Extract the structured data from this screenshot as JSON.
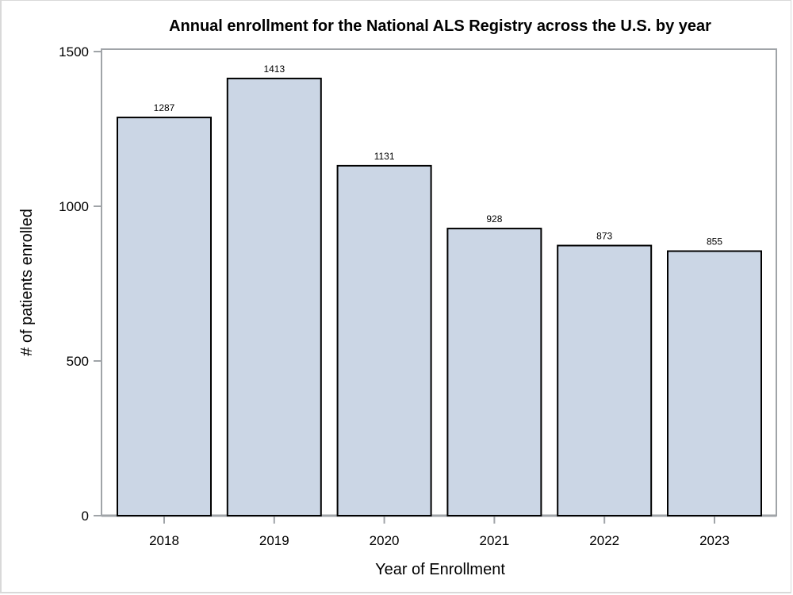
{
  "chart_data": {
    "type": "bar",
    "title": "Annual enrollment for the National ALS Registry across the U.S. by year",
    "xlabel": "Year of Enrollment",
    "ylabel": "# of patients enrolled",
    "categories": [
      "2018",
      "2019",
      "2020",
      "2021",
      "2022",
      "2023"
    ],
    "values": [
      1287,
      1413,
      1131,
      928,
      873,
      855
    ],
    "data_labels": [
      "1287",
      "1413",
      "1131",
      "928",
      "873",
      "855"
    ],
    "ylim": [
      0,
      1500
    ],
    "yticks": [
      0,
      500,
      1000,
      1500
    ],
    "ytick_labels": [
      "0",
      "500",
      "1000",
      "1500"
    ],
    "grid": false,
    "legend": "none",
    "colors": {
      "bar_fill": "#cbd6e5",
      "bar_stroke": "#000000",
      "axis": "#a0a4a8",
      "frame": "#a0a4a8"
    }
  }
}
